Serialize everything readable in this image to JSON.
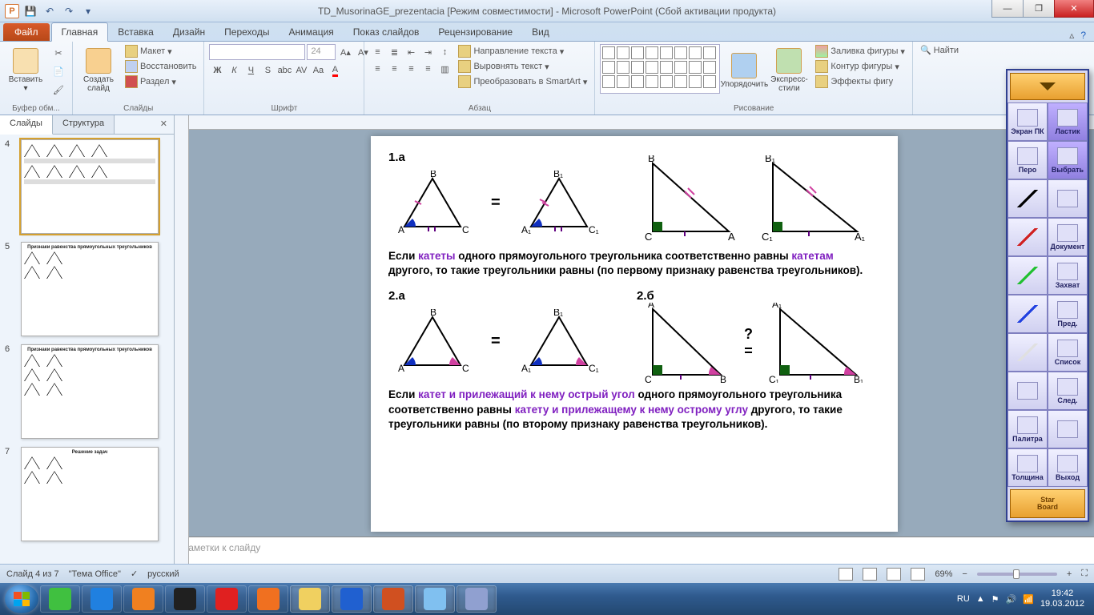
{
  "titlebar": {
    "title": "TD_MusorinaGE_prezentacia [Режим совместимости]  -  Microsoft PowerPoint (Сбой активации продукта)"
  },
  "ribbon": {
    "file": "Файл",
    "tabs": [
      "Главная",
      "Вставка",
      "Дизайн",
      "Переходы",
      "Анимация",
      "Показ слайдов",
      "Рецензирование",
      "Вид"
    ],
    "active_tab": 0,
    "groups": {
      "clipboard": {
        "label": "Буфер обм...",
        "paste": "Вставить"
      },
      "slides": {
        "label": "Слайды",
        "new": "Создать\nслайд",
        "layout": "Макет",
        "reset": "Восстановить",
        "section": "Раздел"
      },
      "font": {
        "label": "Шрифт",
        "size": "24"
      },
      "paragraph": {
        "label": "Абзац",
        "dir": "Направление текста",
        "align": "Выровнять текст",
        "smartart": "Преобразовать в SmartArt"
      },
      "drawing": {
        "label": "Рисование",
        "arrange": "Упорядочить",
        "styles": "Экспресс-стили",
        "fill": "Заливка фигуры",
        "outline": "Контур фигуры",
        "effects": "Эффекты фигу"
      },
      "editing": {
        "find": "Найти"
      }
    }
  },
  "side": {
    "tabs": [
      "Слайды",
      "Структура"
    ],
    "thumbs": [
      4,
      5,
      6,
      7
    ]
  },
  "slide": {
    "label1a": "1.а",
    "label2a": "2.а",
    "label2b": "2.б",
    "eq": "=",
    "q": "?",
    "vA": "А",
    "vB": "В",
    "vC": "С",
    "vA1": "А₁",
    "vB1": "В₁",
    "vC1": "С₁",
    "th1_p1": "Если ",
    "th1_kw1": "катеты",
    "th1_p2": " одного прямоугольного треугольника соответственно равны ",
    "th1_kw2": "катетам",
    "th1_p3": " другого, то такие треугольники равны (по первому признаку равенства треугольников).",
    "th2_p1": "Если ",
    "th2_kw1": "катет и прилежащий к нему острый угол",
    "th2_p2": " одного прямоугольного треугольника соответственно равны ",
    "th2_kw2": "катету и прилежащему к нему острому углу",
    "th2_p3": " другого, то такие треугольники равны (по второму признаку равенства треугольников)."
  },
  "notes": {
    "placeholder": "Заметки к слайду"
  },
  "status": {
    "slide": "Слайд 4 из 7",
    "theme": "\"Тема Office\"",
    "lang": "русский",
    "zoom": "69%"
  },
  "starboard": {
    "cells": [
      [
        "Экран ПК",
        "Ластик"
      ],
      [
        "Перо",
        "Выбрать"
      ],
      [
        "",
        ""
      ],
      [
        "",
        "Документ"
      ],
      [
        "",
        "Захват"
      ],
      [
        "",
        "Пред."
      ],
      [
        "",
        "Список"
      ],
      [
        "",
        "След."
      ],
      [
        "Палитра",
        ""
      ],
      [
        "Толщина",
        "Выход"
      ]
    ],
    "bottom": "Star\nBoard",
    "line_colors": [
      "#000000",
      "#d02020",
      "#20c030",
      "#2040e0",
      "#e0e0e0"
    ]
  },
  "taskbar": {
    "lang": "RU",
    "time": "19:42",
    "date": "19.03.2012",
    "apps": [
      {
        "name": "icq",
        "color": "#40c040"
      },
      {
        "name": "ie",
        "color": "#2080e0"
      },
      {
        "name": "wmp",
        "color": "#f08020"
      },
      {
        "name": "app",
        "color": "#202020"
      },
      {
        "name": "opera",
        "color": "#e02020"
      },
      {
        "name": "firefox",
        "color": "#f07020"
      },
      {
        "name": "explorer",
        "color": "#f0d060",
        "active": true
      },
      {
        "name": "word",
        "color": "#2060d0",
        "active": true
      },
      {
        "name": "powerpoint",
        "color": "#d05020",
        "active": true
      },
      {
        "name": "paint",
        "color": "#80c0f0",
        "active": true
      },
      {
        "name": "starboard",
        "color": "#90a0d0",
        "active": true
      }
    ]
  },
  "colors": {
    "angle_blue": "#1030c0",
    "angle_pink": "#d040a0",
    "right_angle": "#106010",
    "tick": "#600080"
  }
}
